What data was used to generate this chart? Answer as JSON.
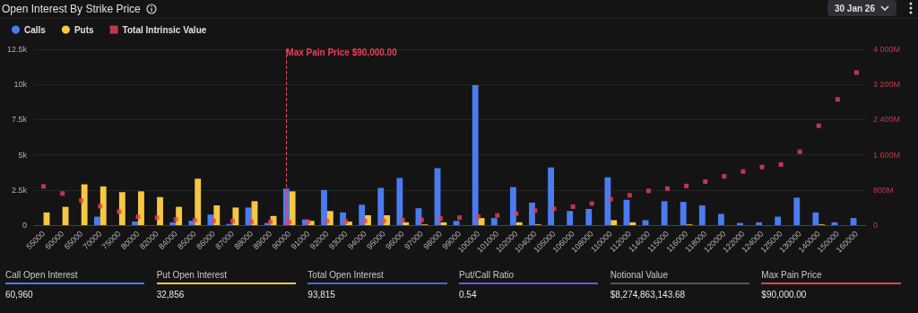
{
  "chart_data": {
    "type": "bar",
    "title": "Open Interest By Strike Price",
    "categories": [
      "55000",
      "60000",
      "65000",
      "70000",
      "75000",
      "80000",
      "82000",
      "84000",
      "85000",
      "86000",
      "87000",
      "88000",
      "89000",
      "90000",
      "91000",
      "92000",
      "93000",
      "94000",
      "95000",
      "96000",
      "97000",
      "98000",
      "99000",
      "100000",
      "101000",
      "102000",
      "104000",
      "105000",
      "106000",
      "108000",
      "110000",
      "112000",
      "114000",
      "115000",
      "116000",
      "118000",
      "120000",
      "122000",
      "124000",
      "125000",
      "130000",
      "140000",
      "150000",
      "160000"
    ],
    "series": [
      {
        "name": "Calls",
        "color": "#4a7cf0",
        "values": [
          0,
          0,
          0,
          600,
          0,
          250,
          0,
          200,
          300,
          750,
          80,
          1250,
          150,
          2600,
          400,
          2500,
          900,
          1450,
          2650,
          3350,
          1200,
          4050,
          300,
          9950,
          500,
          2700,
          1600,
          4100,
          1000,
          1150,
          3400,
          1800,
          350,
          1700,
          1650,
          1400,
          800,
          150,
          200,
          600,
          1950,
          900,
          200,
          500
        ]
      },
      {
        "name": "Puts",
        "color": "#f5c842",
        "values": [
          900,
          1300,
          2900,
          2750,
          2350,
          2400,
          2000,
          1300,
          3300,
          1400,
          1250,
          1700,
          650,
          2400,
          300,
          1000,
          250,
          700,
          700,
          200,
          50,
          200,
          0,
          500,
          0,
          200,
          50,
          0,
          0,
          0,
          350,
          200,
          0,
          0,
          50,
          0,
          0,
          0,
          0,
          0,
          0,
          50,
          0,
          0
        ]
      },
      {
        "name": "Total Intrinsic Value",
        "type": "scatter",
        "axis": "y2",
        "color": "#e8405a",
        "marker": "square",
        "values": [
          880,
          720,
          560,
          430,
          310,
          190,
          170,
          130,
          110,
          95,
          90,
          80,
          75,
          70,
          75,
          90,
          80,
          95,
          95,
          115,
          120,
          150,
          170,
          190,
          220,
          260,
          330,
          370,
          420,
          490,
          590,
          680,
          780,
          830,
          890,
          990,
          1110,
          1220,
          1320,
          1380,
          1670,
          2260,
          2860,
          3470
        ]
      }
    ],
    "ylim": [
      0,
      12500
    ],
    "yticks": [
      0,
      {
        "value": 2500,
        "label": "2.5k"
      },
      {
        "value": 5000,
        "label": "5k"
      },
      {
        "value": 7500,
        "label": "7.5k"
      },
      {
        "value": 10000,
        "label": "10k"
      },
      {
        "value": 12500,
        "label": "12.5k"
      }
    ],
    "y2lim": [
      0,
      4000
    ],
    "y2ticks": [
      0,
      {
        "value": 800,
        "label": "800M"
      },
      {
        "value": 1600,
        "label": "1 600M"
      },
      {
        "value": 2400,
        "label": "2 400M"
      },
      {
        "value": 3200,
        "label": "3 200M"
      },
      {
        "value": 4000,
        "label": "4 000M"
      }
    ],
    "ref_lines": [
      {
        "axis": "x",
        "value": "90000",
        "label": "Max Pain Price $90,000.00",
        "color": "#e8405a",
        "line_style": "dashed"
      }
    ],
    "grid": "y",
    "legend": "top left",
    "annotations": [
      "30 Jan 26",
      "Call Open Interest",
      "60,960",
      "Put Open Interest",
      "32,856",
      "Total Open Interest",
      "93,815",
      "Put/Call Ratio",
      "0.54",
      "Notional Value",
      "$8,274,863,143.68",
      "Max Pain Price",
      "$90,000.00"
    ]
  }
}
